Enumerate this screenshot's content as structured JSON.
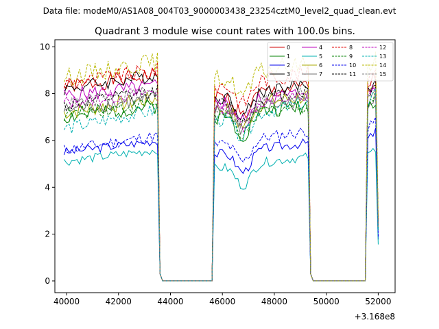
{
  "suptitle": "Data file: modeM0/AS1A08_004T03_9000003438_23254cztM0_level2_quad_clean.evt",
  "chart_data": {
    "type": "line",
    "title": "Quadrant 3 module wise count rates with 100.0s bins.",
    "xlabel": "",
    "ylabel": "",
    "x_offset_label": "+3.168e8",
    "xlim": [
      39550,
      52650
    ],
    "ylim": [
      -0.5,
      10.3
    ],
    "xticks": [
      40000,
      42000,
      44000,
      46000,
      48000,
      50000,
      52000
    ],
    "xtick_labels": [
      "40000",
      "42000",
      "44000",
      "46000",
      "48000",
      "50000",
      "52000"
    ],
    "yticks": [
      0,
      2,
      4,
      6,
      8,
      10
    ],
    "ytick_labels": [
      "0",
      "2",
      "4",
      "6",
      "8",
      "10"
    ],
    "legend_position": "top-right",
    "segments": [
      {
        "start": 39900,
        "end": 43500,
        "ramp_to": 43600
      },
      {
        "start": 45600,
        "end": 49300,
        "ramp_to": 49400
      },
      {
        "start": 51500,
        "end": 51900,
        "ramp_to": 52000
      }
    ],
    "gaps_zero": [
      [
        43600,
        45600
      ],
      [
        49400,
        51500
      ]
    ],
    "series": [
      {
        "name": "0",
        "color": "#d00000",
        "dash": "solid",
        "base": 8.3,
        "slope": 0.25,
        "seg2": 7.8,
        "seg3": 8.2,
        "noise": 0.35,
        "seed": 1
      },
      {
        "name": "1",
        "color": "#008000",
        "dash": "solid",
        "base": 7.0,
        "slope": 0.25,
        "seg2": 7.0,
        "seg3": 7.3,
        "noise": 0.35,
        "seed": 2
      },
      {
        "name": "2",
        "color": "#0000ee",
        "dash": "solid",
        "base": 5.5,
        "slope": 0.25,
        "seg2": 5.4,
        "seg3": 5.9,
        "noise": 0.2,
        "seed": 3
      },
      {
        "name": "3",
        "color": "#000000",
        "dash": "solid",
        "base": 8.2,
        "slope": 0.3,
        "seg2": 7.8,
        "seg3": 8.0,
        "noise": 0.3,
        "seed": 4
      },
      {
        "name": "4",
        "color": "#bb00bb",
        "dash": "solid",
        "base": 7.9,
        "slope": 0.2,
        "seg2": 7.6,
        "seg3": 7.9,
        "noise": 0.35,
        "seed": 5
      },
      {
        "name": "5",
        "color": "#00b0b0",
        "dash": "solid",
        "base": 5.1,
        "slope": 0.25,
        "seg2": 4.8,
        "seg3": 5.2,
        "noise": 0.2,
        "seed": 6
      },
      {
        "name": "6",
        "color": "#a8a800",
        "dash": "solid",
        "base": 7.2,
        "slope": 0.3,
        "seg2": 7.3,
        "seg3": 7.6,
        "noise": 0.35,
        "seed": 7
      },
      {
        "name": "7",
        "color": "#707070",
        "dash": "solid",
        "base": 7.3,
        "slope": 0.25,
        "seg2": 7.2,
        "seg3": 7.5,
        "noise": 0.3,
        "seed": 8
      },
      {
        "name": "8",
        "color": "#e00000",
        "dash": "dashed",
        "base": 8.4,
        "slope": 0.3,
        "seg2": 8.3,
        "seg3": 8.6,
        "noise": 0.35,
        "seed": 9
      },
      {
        "name": "9",
        "color": "#008000",
        "dash": "dashed",
        "base": 7.1,
        "slope": 0.25,
        "seg2": 7.0,
        "seg3": 7.4,
        "noise": 0.3,
        "seed": 10
      },
      {
        "name": "10",
        "color": "#0000ee",
        "dash": "dashed",
        "base": 5.6,
        "slope": 0.3,
        "seg2": 5.8,
        "seg3": 6.3,
        "noise": 0.25,
        "seed": 11
      },
      {
        "name": "11",
        "color": "#000000",
        "dash": "dashed",
        "base": 7.5,
        "slope": 0.3,
        "seg2": 7.5,
        "seg3": 7.8,
        "noise": 0.3,
        "seed": 12
      },
      {
        "name": "12",
        "color": "#bb00bb",
        "dash": "dashed",
        "base": 7.6,
        "slope": 0.25,
        "seg2": 7.4,
        "seg3": 7.8,
        "noise": 0.3,
        "seed": 13
      },
      {
        "name": "13",
        "color": "#00b0b0",
        "dash": "dashed",
        "base": 6.5,
        "slope": 0.4,
        "seg2": 6.8,
        "seg3": 7.2,
        "noise": 0.3,
        "seed": 14
      },
      {
        "name": "14",
        "color": "#b8b800",
        "dash": "dashed",
        "base": 8.7,
        "slope": 0.35,
        "seg2": 8.6,
        "seg3": 9.0,
        "noise": 0.4,
        "seed": 15
      },
      {
        "name": "15",
        "color": "#808080",
        "dash": "dashed",
        "base": 7.5,
        "slope": 0.3,
        "seg2": 7.4,
        "seg3": 7.7,
        "noise": 0.3,
        "seed": 16
      }
    ]
  }
}
